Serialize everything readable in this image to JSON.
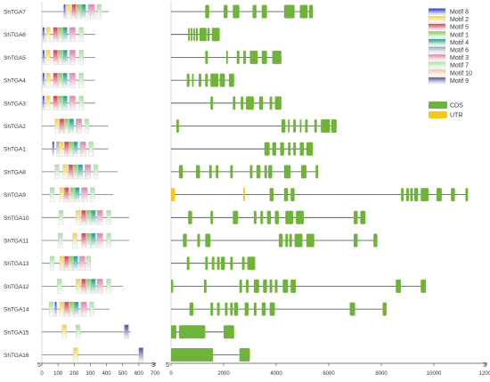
{
  "motif_legend": [
    {
      "name": "Motif 8",
      "color": "#1f35d6"
    },
    {
      "name": "Motif 2",
      "color": "#f7d24a"
    },
    {
      "name": "Motif 5",
      "color": "#e0344e"
    },
    {
      "name": "Motif 1",
      "color": "#7fcc5a"
    },
    {
      "name": "Motif 4",
      "color": "#1e9a8a"
    },
    {
      "name": "Motif 6",
      "color": "#9aa8bf"
    },
    {
      "name": "Motif 3",
      "color": "#ef7ba3"
    },
    {
      "name": "Motif 7",
      "color": "#a8e2a2"
    },
    {
      "name": "Motif 10",
      "color": "#f4c7a3"
    },
    {
      "name": "Motif 9",
      "color": "#5b4d9c"
    }
  ],
  "structure_legend": [
    {
      "name": "CDS",
      "color": "#6fb33a"
    },
    {
      "name": "UTR",
      "color": "#f6c81a"
    }
  ],
  "axes": {
    "protein_ticks": [
      "0",
      "100",
      "200",
      "300",
      "400",
      "500",
      "600",
      "700"
    ],
    "protein_max": 700,
    "gene_ticks": [
      "0",
      "2000",
      "4000",
      "6000",
      "8000",
      "10000",
      "12000"
    ],
    "gene_max": 12000,
    "five_prime": "5'",
    "three_prime": "3'"
  },
  "genes": [
    {
      "name": "ShTGA7",
      "protein_len": 415,
      "gene_len": 5400,
      "motifs": [
        [
          8,
          135
        ],
        [
          2,
          150
        ],
        [
          5,
          185
        ],
        [
          1,
          215
        ],
        [
          4,
          245
        ],
        [
          6,
          285
        ],
        [
          3,
          300
        ],
        [
          7,
          340
        ]
      ],
      "cds": [
        [
          1300,
          1450
        ],
        [
          2000,
          2150
        ],
        [
          2350,
          2600
        ],
        [
          3100,
          3250
        ],
        [
          3450,
          3650
        ],
        [
          4300,
          4700
        ],
        [
          4900,
          5200
        ],
        [
          5250,
          5400
        ]
      ],
      "utr": []
    },
    {
      "name": "ShTGA6",
      "protein_len": 330,
      "gene_len": 1850,
      "motifs": [
        [
          8,
          5
        ],
        [
          2,
          25
        ],
        [
          5,
          70
        ],
        [
          1,
          100
        ],
        [
          4,
          130
        ],
        [
          6,
          170
        ],
        [
          3,
          180
        ],
        [
          7,
          230
        ]
      ],
      "cds": [
        [
          650,
          700
        ],
        [
          750,
          800
        ],
        [
          850,
          900
        ],
        [
          950,
          1020
        ],
        [
          1080,
          1350
        ],
        [
          1380,
          1470
        ],
        [
          1550,
          1850
        ]
      ],
      "utr": []
    },
    {
      "name": "ShTGA5",
      "protein_len": 330,
      "gene_len": 4200,
      "motifs": [
        [
          8,
          5
        ],
        [
          2,
          25
        ],
        [
          5,
          70
        ],
        [
          1,
          100
        ],
        [
          4,
          130
        ],
        [
          6,
          170
        ],
        [
          3,
          180
        ],
        [
          7,
          230
        ]
      ],
      "cds": [
        [
          1300,
          1400
        ],
        [
          2100,
          2150
        ],
        [
          2500,
          2600
        ],
        [
          2750,
          2850
        ],
        [
          3000,
          3300
        ],
        [
          3450,
          3650
        ],
        [
          3850,
          4200
        ]
      ],
      "utr": []
    },
    {
      "name": "ShTGA4",
      "protein_len": 330,
      "gene_len": 2400,
      "motifs": [
        [
          8,
          5
        ],
        [
          2,
          25
        ],
        [
          5,
          70
        ],
        [
          1,
          100
        ],
        [
          4,
          130
        ],
        [
          6,
          170
        ],
        [
          3,
          180
        ],
        [
          7,
          230
        ]
      ],
      "cds": [
        [
          600,
          700
        ],
        [
          800,
          850
        ],
        [
          1050,
          1150
        ],
        [
          1300,
          1400
        ],
        [
          1500,
          1800
        ],
        [
          1850,
          2050
        ],
        [
          2200,
          2400
        ]
      ],
      "utr": []
    },
    {
      "name": "ShTGA3",
      "protein_len": 330,
      "gene_len": 4200,
      "motifs": [
        [
          8,
          5
        ],
        [
          2,
          25
        ],
        [
          5,
          70
        ],
        [
          1,
          100
        ],
        [
          4,
          130
        ],
        [
          6,
          170
        ],
        [
          3,
          180
        ],
        [
          7,
          230
        ]
      ],
      "cds": [
        [
          1500,
          1600
        ],
        [
          2350,
          2450
        ],
        [
          2650,
          2750
        ],
        [
          2850,
          3150
        ],
        [
          3350,
          3500
        ],
        [
          3750,
          3850
        ],
        [
          3950,
          4200
        ]
      ],
      "utr": []
    },
    {
      "name": "ShTGA2",
      "protein_len": 410,
      "gene_len": 6300,
      "motifs": [
        [
          2,
          80
        ],
        [
          5,
          110
        ],
        [
          1,
          140
        ],
        [
          4,
          170
        ],
        [
          6,
          210
        ],
        [
          3,
          220
        ],
        [
          7,
          265
        ]
      ],
      "cds": [
        [
          200,
          300
        ],
        [
          4200,
          4350
        ],
        [
          4450,
          4500
        ],
        [
          4650,
          4750
        ],
        [
          4900,
          4950
        ],
        [
          5100,
          5200
        ],
        [
          5450,
          5550
        ],
        [
          5700,
          6050
        ],
        [
          6100,
          6300
        ]
      ],
      "utr": []
    },
    {
      "name": "ShTGA1",
      "protein_len": 410,
      "gene_len": 5400,
      "motifs": [
        [
          8,
          65
        ],
        [
          6,
          90
        ],
        [
          2,
          105
        ],
        [
          5,
          140
        ],
        [
          1,
          165
        ],
        [
          4,
          195
        ],
        [
          6,
          235
        ],
        [
          3,
          245
        ],
        [
          7,
          290
        ]
      ],
      "cds": [
        [
          3550,
          3750
        ],
        [
          3850,
          4000
        ],
        [
          4150,
          4300
        ],
        [
          4450,
          4550
        ],
        [
          4650,
          4750
        ],
        [
          4900,
          5050
        ],
        [
          5150,
          5400
        ]
      ],
      "utr": []
    },
    {
      "name": "ShTGA8",
      "protein_len": 470,
      "gene_len": 5600,
      "motifs": [
        [
          7,
          80
        ],
        [
          2,
          130
        ],
        [
          5,
          165
        ],
        [
          1,
          195
        ],
        [
          4,
          225
        ],
        [
          6,
          265
        ],
        [
          3,
          275
        ],
        [
          7,
          320
        ]
      ],
      "cds": [
        [
          300,
          450
        ],
        [
          950,
          1100
        ],
        [
          1450,
          1550
        ],
        [
          1700,
          1800
        ],
        [
          2250,
          2350
        ],
        [
          3000,
          3100
        ],
        [
          3250,
          3400
        ],
        [
          3550,
          3650
        ],
        [
          3700,
          3850
        ],
        [
          4300,
          4550
        ],
        [
          4950,
          5150
        ],
        [
          5500,
          5600
        ]
      ],
      "utr": []
    },
    {
      "name": "ShTGA9",
      "protein_len": 440,
      "gene_len": 11300,
      "motifs": [
        [
          7,
          50
        ],
        [
          2,
          110
        ],
        [
          5,
          140
        ],
        [
          1,
          175
        ],
        [
          4,
          205
        ],
        [
          6,
          245
        ],
        [
          3,
          255
        ],
        [
          7,
          300
        ]
      ],
      "cds": [
        [
          3750,
          3900
        ],
        [
          4300,
          4450
        ],
        [
          4550,
          4700
        ],
        [
          8750,
          8850
        ],
        [
          8950,
          9050
        ],
        [
          9100,
          9200
        ],
        [
          9250,
          9400
        ],
        [
          9500,
          9800
        ],
        [
          10100,
          10300
        ],
        [
          10650,
          10800
        ],
        [
          11200,
          11300
        ]
      ],
      "utr": [
        [
          0,
          150
        ],
        [
          2750,
          2800
        ]
      ]
    },
    {
      "name": "ShTGA10",
      "protein_len": 540,
      "gene_len": 7400,
      "motifs": [
        [
          7,
          105
        ],
        [
          2,
          210
        ],
        [
          5,
          245
        ],
        [
          1,
          275
        ],
        [
          4,
          305
        ],
        [
          6,
          340
        ],
        [
          3,
          350
        ],
        [
          7,
          400
        ]
      ],
      "cds": [
        [
          650,
          800
        ],
        [
          1500,
          1600
        ],
        [
          2350,
          2550
        ],
        [
          3150,
          3250
        ],
        [
          3400,
          3500
        ],
        [
          3650,
          3800
        ],
        [
          3950,
          4100
        ],
        [
          4350,
          4650
        ],
        [
          4750,
          5050
        ],
        [
          6950,
          7100
        ],
        [
          7200,
          7400
        ]
      ],
      "utr": []
    },
    {
      "name": "ShTGA11",
      "protein_len": 540,
      "gene_len": 7850,
      "motifs": [
        [
          7,
          100
        ],
        [
          2,
          190
        ],
        [
          5,
          245
        ],
        [
          1,
          275
        ],
        [
          4,
          305
        ],
        [
          6,
          340
        ],
        [
          3,
          350
        ],
        [
          7,
          400
        ]
      ],
      "cds": [
        [
          450,
          600
        ],
        [
          1000,
          1100
        ],
        [
          1300,
          1500
        ],
        [
          4100,
          4250
        ],
        [
          4350,
          4450
        ],
        [
          4500,
          4600
        ],
        [
          4700,
          5000
        ],
        [
          5150,
          5450
        ],
        [
          6950,
          7100
        ],
        [
          7700,
          7850
        ]
      ],
      "utr": []
    },
    {
      "name": "ShTGA13",
      "protein_len": 300,
      "gene_len": 3200,
      "motifs": [
        [
          7,
          50
        ],
        [
          2,
          110
        ],
        [
          5,
          140
        ],
        [
          1,
          165
        ],
        [
          4,
          195
        ],
        [
          6,
          230
        ],
        [
          3,
          240
        ],
        [
          7,
          275
        ]
      ],
      "cds": [
        [
          600,
          700
        ],
        [
          1300,
          1400
        ],
        [
          1550,
          1650
        ],
        [
          1750,
          1850
        ],
        [
          1900,
          2050
        ],
        [
          2250,
          2350
        ],
        [
          2700,
          2800
        ],
        [
          2900,
          3200
        ]
      ],
      "utr": []
    },
    {
      "name": "ShTGA12",
      "protein_len": 500,
      "gene_len": 9700,
      "motifs": [
        [
          7,
          95
        ],
        [
          2,
          210
        ],
        [
          5,
          245
        ],
        [
          1,
          275
        ],
        [
          4,
          305
        ],
        [
          6,
          340
        ],
        [
          3,
          350
        ],
        [
          7,
          400
        ]
      ],
      "cds": [
        [
          0,
          80
        ],
        [
          1250,
          1350
        ],
        [
          2600,
          2700
        ],
        [
          2850,
          2950
        ],
        [
          3150,
          3350
        ],
        [
          3500,
          3650
        ],
        [
          3750,
          3850
        ],
        [
          3950,
          4050
        ],
        [
          4250,
          4450
        ],
        [
          4550,
          4750
        ],
        [
          8550,
          8750
        ],
        [
          9500,
          9700
        ]
      ],
      "utr": []
    },
    {
      "name": "ShTGA14",
      "protein_len": 420,
      "gene_len": 8200,
      "motifs": [
        [
          7,
          45
        ],
        [
          8,
          80
        ],
        [
          2,
          110
        ],
        [
          5,
          140
        ],
        [
          1,
          170
        ],
        [
          4,
          200
        ],
        [
          6,
          240
        ],
        [
          3,
          250
        ],
        [
          7,
          295
        ]
      ],
      "cds": [
        [
          700,
          850
        ],
        [
          1500,
          1600
        ],
        [
          1750,
          1850
        ],
        [
          2050,
          2150
        ],
        [
          2250,
          2350
        ],
        [
          2400,
          2550
        ],
        [
          2800,
          2950
        ],
        [
          3150,
          3250
        ],
        [
          3450,
          3600
        ],
        [
          3750,
          3950
        ],
        [
          6800,
          7000
        ],
        [
          8050,
          8200
        ]
      ],
      "utr": []
    },
    {
      "name": "ShTGA15",
      "protein_len": 550,
      "gene_len": 2400,
      "motifs": [
        [
          2,
          125
        ],
        [
          7,
          210
        ],
        [
          9,
          510
        ]
      ],
      "cds": [
        [
          0,
          200
        ],
        [
          300,
          1300
        ],
        [
          2000,
          2400
        ]
      ],
      "utr": []
    },
    {
      "name": "ShTGA16",
      "protein_len": 630,
      "gene_len": 3000,
      "motifs": [
        [
          2,
          195
        ],
        [
          9,
          600
        ]
      ],
      "cds": [
        [
          0,
          1600
        ],
        [
          2600,
          3000
        ]
      ],
      "utr": []
    }
  ]
}
